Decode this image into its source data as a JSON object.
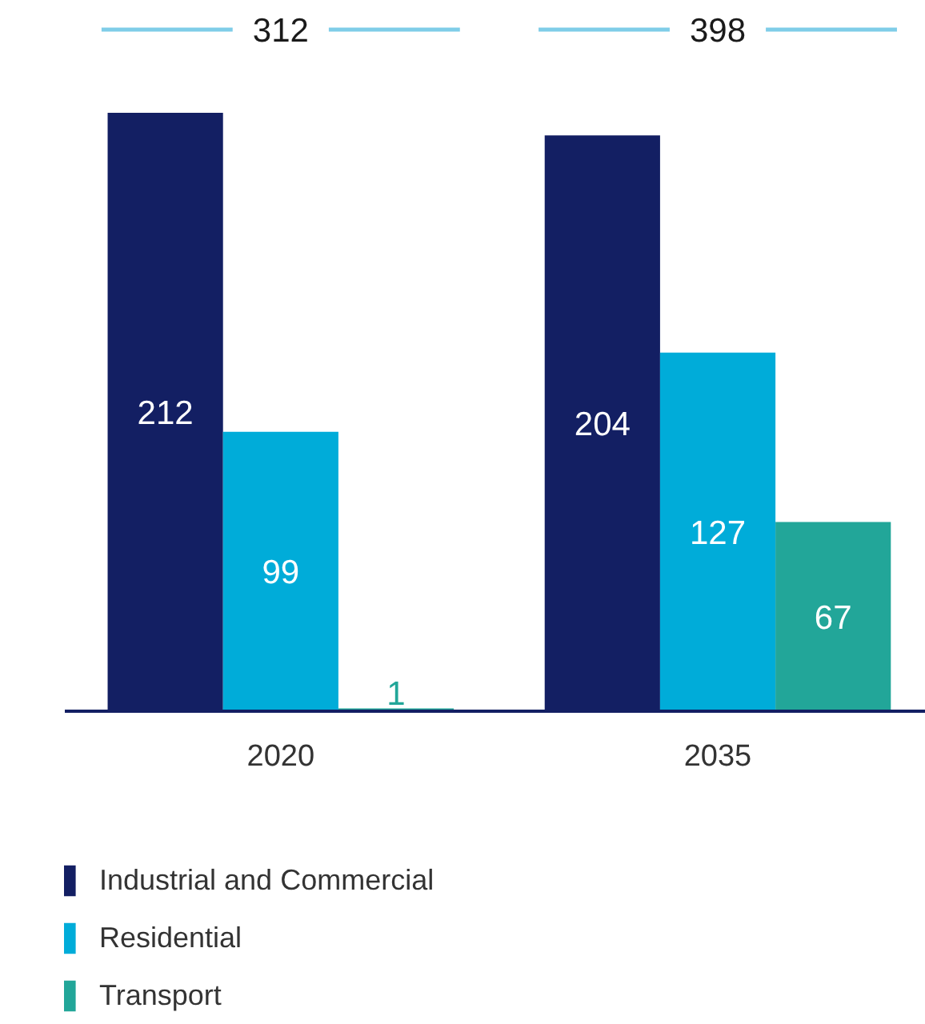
{
  "chart_data": {
    "type": "bar",
    "categories": [
      "2020",
      "2035"
    ],
    "series": [
      {
        "name": "Industrial and Commercial",
        "color": "#131f63",
        "values": [
          212,
          204
        ]
      },
      {
        "name": "Residential",
        "color": "#00acd9",
        "values": [
          99,
          127
        ]
      },
      {
        "name": "Transport",
        "color": "#22a699",
        "values": [
          1,
          67
        ]
      }
    ],
    "data_labels": true,
    "totals": [
      "312",
      "398"
    ],
    "legend": "bottom"
  }
}
